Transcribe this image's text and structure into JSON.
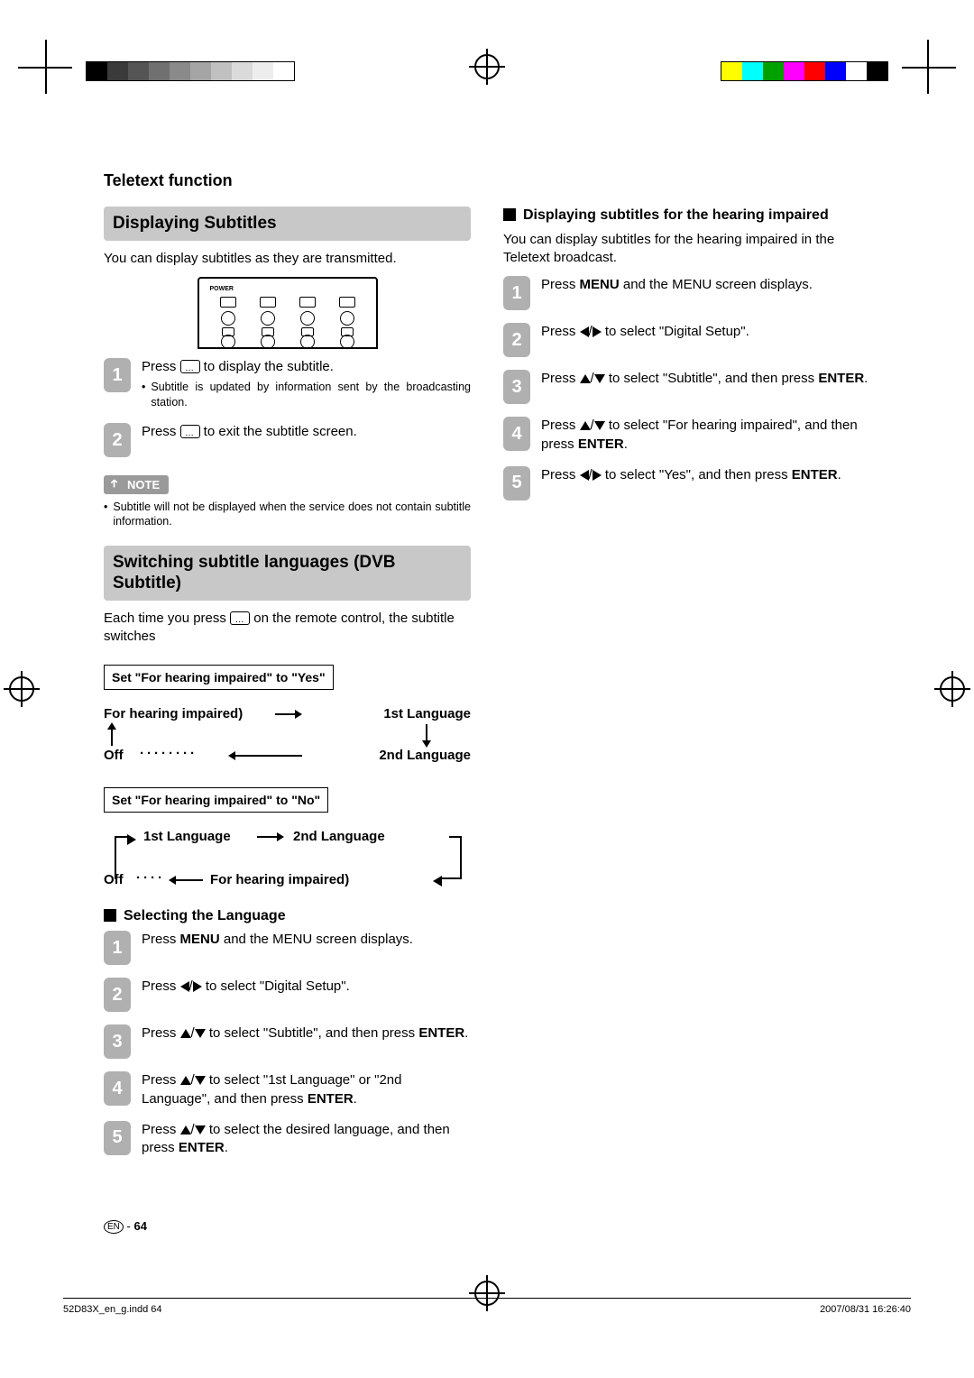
{
  "printer": {
    "gray_ramp": [
      "#000000",
      "#3a3a3a",
      "#555555",
      "#707070",
      "#8a8a8a",
      "#a5a5a5",
      "#c0c0c0",
      "#dadada",
      "#ededed",
      "#ffffff"
    ],
    "color_bars": [
      "#ffff00",
      "#00ffff",
      "#00a000",
      "#ff00ff",
      "#ff0000",
      "#0000ff",
      "#ffffff",
      "#000000"
    ]
  },
  "header": {
    "section_title": "Teletext function"
  },
  "left": {
    "h1": "Displaying Subtitles",
    "intro": "You can display subtitles as they are transmitted.",
    "steps1": {
      "s1_a": "Press ",
      "s1_b": " to display the subtitle.",
      "s1_note": "Subtitle is updated by information sent by the broadcasting station.",
      "s2_a": "Press ",
      "s2_b": " to exit the subtitle screen."
    },
    "note_label": "NOTE",
    "note_text": "Subtitle will not be displayed when the service does not contain subtitle information.",
    "h2": "Switching subtitle languages (DVB Subtitle)",
    "intro2_a": "Each time you press ",
    "intro2_b": " on the remote control, the subtitle switches",
    "box_yes": "Set \"For hearing impaired\" to \"Yes\"",
    "flow_yes": {
      "a": "For hearing impaired)",
      "b": "1st Language",
      "c": "Off",
      "d": "2nd Language"
    },
    "box_no": "Set \"For hearing impaired\" to \"No\"",
    "flow_no": {
      "a": "1st Language",
      "b": "2nd Language",
      "c": "Off",
      "d": "For hearing impaired)"
    },
    "sub_lang": "Selecting the Language",
    "steps_lang": {
      "s1_a": "Press ",
      "s1_menu": "MENU",
      "s1_b": " and the MENU screen displays.",
      "s2_a": "Press ",
      "s2_b": " to select \"Digital Setup\".",
      "s3_a": "Press ",
      "s3_b": " to select \"Subtitle\", and then press ",
      "s3_enter": "ENTER",
      "s3_c": ".",
      "s4_a": "Press ",
      "s4_b": " to select \"1st Language\" or \"2nd Language\", and then press ",
      "s4_enter": "ENTER",
      "s4_c": ".",
      "s5_a": "Press ",
      "s5_b": " to select the desired language, and then press ",
      "s5_enter": "ENTER",
      "s5_c": "."
    }
  },
  "right": {
    "subhead": "Displaying subtitles for the hearing impaired",
    "intro": "You can display subtitles for the hearing impaired in the Teletext broadcast.",
    "steps": {
      "s1_a": "Press ",
      "s1_menu": "MENU",
      "s1_b": " and the MENU screen displays.",
      "s2_a": "Press ",
      "s2_b": " to select \"Digital Setup\".",
      "s3_a": "Press ",
      "s3_b": " to select \"Subtitle\", and then press ",
      "s3_enter": "ENTER",
      "s3_c": ".",
      "s4_a": "Press ",
      "s4_b": " to select \"For hearing impaired\", and then press ",
      "s4_enter": "ENTER",
      "s4_c": ".",
      "s5_a": "Press ",
      "s5_b": " to select \"Yes\", and then press ",
      "s5_enter": "ENTER",
      "s5_c": "."
    }
  },
  "footer": {
    "lang_code": "EN",
    "page_sep": " - ",
    "page_num": "64",
    "file": "52D83X_en_g.indd   64",
    "timestamp": "2007/08/31   16:26:40"
  },
  "badges": {
    "n1": "1",
    "n2": "2",
    "n3": "3",
    "n4": "4",
    "n5": "5"
  },
  "remote": {
    "power_label": "POWER"
  }
}
